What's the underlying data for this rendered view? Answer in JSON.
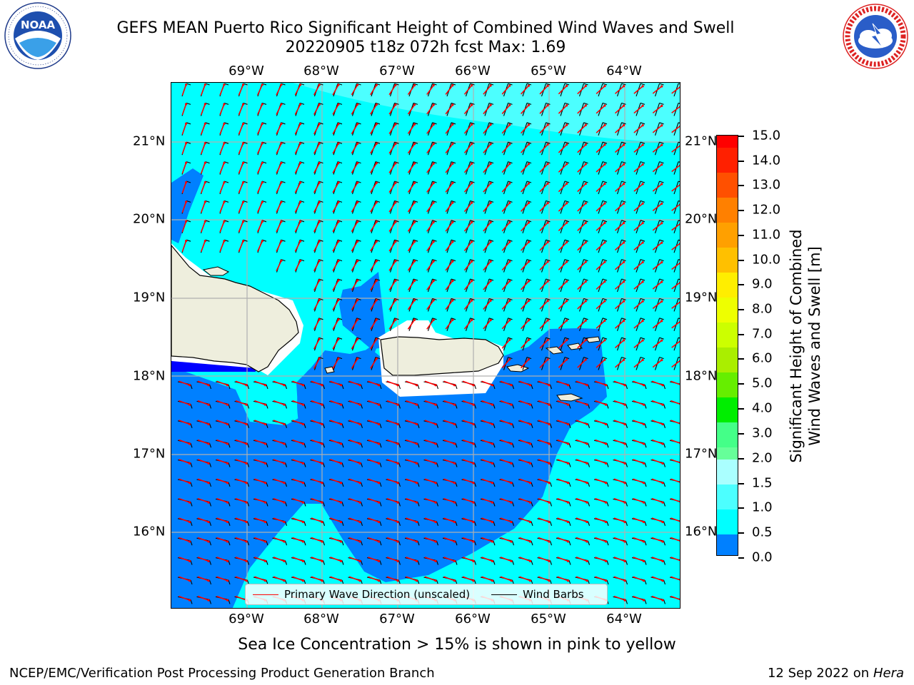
{
  "header": {
    "title_line1": "GEFS MEAN Puerto Rico Significant Height of Combined Wind Waves and Swell",
    "title_line2": "20220905 t18z 072h fcst   Max: 1.69"
  },
  "logos": {
    "left": {
      "name": "noaa-logo",
      "text": "NOAA",
      "ring_text": "NATIONAL OCEANIC AND ATMOSPHERIC ADMINISTRATION · U.S. DEPARTMENT OF COMMERCE"
    },
    "right": {
      "name": "nws-logo",
      "ring_text": "NATIONAL WEATHER SERVICE"
    }
  },
  "map": {
    "lon_labels": [
      "69°W",
      "68°W",
      "67°W",
      "66°W",
      "65°W",
      "64°W"
    ],
    "lat_labels": [
      "21°N",
      "20°N",
      "19°N",
      "18°N",
      "17°N",
      "16°N"
    ],
    "colors": {
      "land": "#eeeedd",
      "sea_0_5_1_0": "#0080ff",
      "sea_1_0_1_5": "#00ffff",
      "sea_1_5_2_0": "#4cffff",
      "sea_0_0_0_5": "#0000ff",
      "grid": "#b0b0b0"
    }
  },
  "legend": {
    "wave_direction": "Primary Wave Direction (unscaled)",
    "wind_barbs": "Wind Barbs",
    "wave_color": "#ff0000",
    "barb_color": "#000000"
  },
  "colorbar": {
    "title_line1": "Significant Height of Combined",
    "title_line2": "Wind Waves and Swell [m]",
    "ticks": [
      "15.0",
      "14.0",
      "13.0",
      "12.0",
      "11.0",
      "10.0",
      "9.0",
      "8.0",
      "7.0",
      "6.0",
      "5.0",
      "4.0",
      "3.0",
      "2.0",
      "1.5",
      "1.0",
      "0.5",
      "0.0"
    ],
    "colors": [
      "#ff0000",
      "#ff2000",
      "#ff5000",
      "#ff8000",
      "#ffa000",
      "#ffc000",
      "#ffee00",
      "#eeff00",
      "#ccff00",
      "#aaee00",
      "#66ee00",
      "#00ee00",
      "#44ff88",
      "#66ff99",
      "#aaffff",
      "#4cffff",
      "#00ffff",
      "#0080ff",
      "#0000ff"
    ]
  },
  "notes": {
    "sea_ice": "Sea Ice Concentration > 15% is shown in pink to yellow"
  },
  "footer": {
    "left": "NCEP/EMC/Verification Post Processing Product Generation Branch",
    "date": "12 Sep 2022 on",
    "machine": "Hera"
  }
}
